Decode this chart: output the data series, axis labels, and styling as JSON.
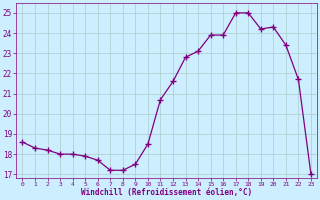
{
  "x": [
    0,
    1,
    2,
    3,
    4,
    5,
    6,
    7,
    8,
    9,
    10,
    11,
    12,
    13,
    14,
    15,
    16,
    17,
    18,
    19,
    20,
    21,
    22,
    23
  ],
  "y": [
    18.6,
    18.3,
    18.2,
    18.0,
    18.0,
    17.9,
    17.7,
    17.2,
    17.2,
    17.5,
    18.5,
    20.7,
    21.6,
    22.8,
    23.1,
    23.9,
    23.9,
    25.0,
    25.0,
    24.2,
    24.3,
    23.4,
    21.7,
    17.0
  ],
  "xlabel": "Windchill (Refroidissement éolien,°C)",
  "xlim": [
    -0.5,
    23.5
  ],
  "ylim": [
    16.8,
    25.5
  ],
  "yticks": [
    17,
    18,
    19,
    20,
    21,
    22,
    23,
    24,
    25
  ],
  "xticks": [
    0,
    1,
    2,
    3,
    4,
    5,
    6,
    7,
    8,
    9,
    10,
    11,
    12,
    13,
    14,
    15,
    16,
    17,
    18,
    19,
    20,
    21,
    22,
    23
  ],
  "line_color": "#800080",
  "marker_color": "#800080",
  "background_color": "#cceeff",
  "grid_color": "#aacccc",
  "tick_label_color": "#800080",
  "xlabel_color": "#800080"
}
